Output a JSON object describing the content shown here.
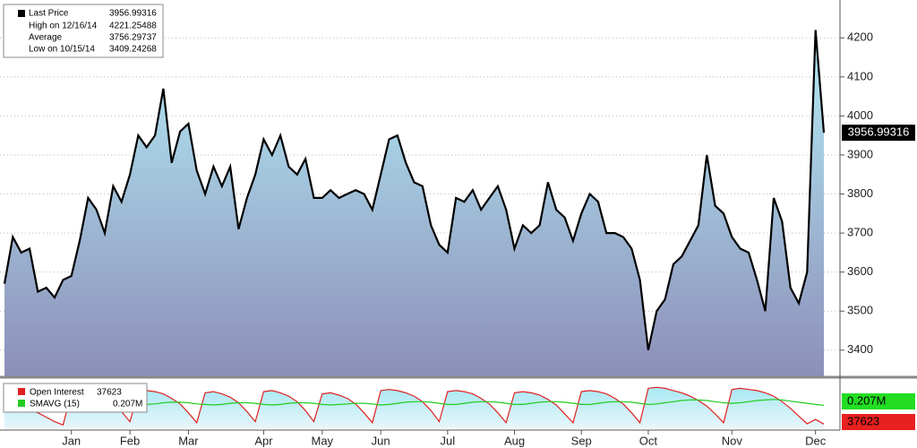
{
  "chart_data": [
    {
      "type": "area",
      "stats": [
        {
          "label": "Last Price",
          "value": 3956.99316
        },
        {
          "label": "High on 12/16/14",
          "value": 4221.25488
        },
        {
          "label": "Average",
          "value": 3756.29737
        },
        {
          "label": "Low on 10/15/14",
          "value": 3409.24268
        }
      ],
      "categories": [
        null,
        null,
        null,
        null,
        null,
        null,
        null,
        null,
        "Jan",
        null,
        null,
        null,
        null,
        null,
        null,
        "Feb",
        null,
        null,
        null,
        null,
        null,
        null,
        "Mar",
        null,
        null,
        null,
        null,
        null,
        null,
        null,
        null,
        "Apr",
        null,
        null,
        null,
        null,
        null,
        null,
        "May",
        null,
        null,
        null,
        null,
        null,
        null,
        "Jun",
        null,
        null,
        null,
        null,
        null,
        null,
        null,
        "Jul",
        null,
        null,
        null,
        null,
        null,
        null,
        null,
        "Aug",
        null,
        null,
        null,
        null,
        null,
        null,
        null,
        "Sep",
        null,
        null,
        null,
        null,
        null,
        null,
        null,
        "Oct",
        null,
        null,
        null,
        null,
        null,
        null,
        null,
        null,
        null,
        "Nov",
        null,
        null,
        null,
        null,
        null,
        null,
        null,
        null,
        null,
        "Dec",
        null
      ],
      "values": [
        3570,
        3690,
        3650,
        3660,
        3550,
        3560,
        3535,
        3580,
        3590,
        3680,
        3790,
        3760,
        3700,
        3820,
        3780,
        3850,
        3950,
        3920,
        3950,
        4070,
        3880,
        3960,
        3980,
        3860,
        3800,
        3870,
        3820,
        3870,
        3710,
        3790,
        3850,
        3940,
        3900,
        3950,
        3870,
        3850,
        3890,
        3790,
        3790,
        3810,
        3790,
        3800,
        3810,
        3800,
        3760,
        3850,
        3940,
        3950,
        3880,
        3830,
        3820,
        3720,
        3670,
        3650,
        3790,
        3780,
        3810,
        3760,
        3790,
        3820,
        3760,
        3660,
        3720,
        3700,
        3720,
        3830,
        3760,
        3740,
        3680,
        3750,
        3800,
        3780,
        3700,
        3700,
        3690,
        3660,
        3580,
        3400,
        3500,
        3530,
        3620,
        3640,
        3680,
        3720,
        3900,
        3770,
        3750,
        3690,
        3660,
        3650,
        3580,
        3500,
        3790,
        3730,
        3560,
        3520,
        3600,
        4220,
        3957
      ],
      "color": "#000000",
      "ylim": [
        3333,
        4297
      ],
      "yticks": [
        3400,
        3500,
        3600,
        3700,
        3800,
        3900,
        4000,
        4100,
        4200
      ],
      "grid": true
    },
    {
      "type": "area",
      "ylim": [
        0,
        420000
      ],
      "series": [
        {
          "name": "Open Interest",
          "color": "#e02020",
          "values": [
            250000,
            230000,
            200000,
            170000,
            140000,
            100000,
            60000,
            30000,
            320000,
            330000,
            320000,
            300000,
            270000,
            230000,
            150000,
            60000,
            330000,
            340000,
            330000,
            310000,
            270000,
            220000,
            140000,
            50000,
            320000,
            330000,
            310000,
            280000,
            230000,
            150000,
            60000,
            330000,
            340000,
            320000,
            290000,
            240000,
            160000,
            60000,
            310000,
            320000,
            300000,
            270000,
            220000,
            140000,
            50000,
            340000,
            350000,
            340000,
            320000,
            290000,
            240000,
            160000,
            60000,
            330000,
            340000,
            330000,
            310000,
            270000,
            220000,
            140000,
            50000,
            320000,
            330000,
            320000,
            300000,
            260000,
            210000,
            130000,
            50000,
            330000,
            340000,
            330000,
            310000,
            270000,
            220000,
            140000,
            50000,
            360000,
            370000,
            360000,
            340000,
            320000,
            290000,
            250000,
            200000,
            130000,
            50000,
            350000,
            360000,
            350000,
            340000,
            320000,
            290000,
            240000,
            180000,
            110000,
            40000,
            80000,
            37623
          ]
        },
        {
          "name": "SMAVG (15)",
          "color": "#22cc22",
          "last_label": "0.207M",
          "values": [
            150000,
            160000,
            170000,
            180000,
            190000,
            200000,
            205000,
            210000,
            215000,
            220000,
            225000,
            230000,
            230000,
            225000,
            220000,
            215000,
            210000,
            215000,
            220000,
            230000,
            235000,
            235000,
            230000,
            220000,
            215000,
            210000,
            215000,
            225000,
            230000,
            230000,
            225000,
            215000,
            210000,
            215000,
            225000,
            230000,
            230000,
            225000,
            215000,
            210000,
            215000,
            220000,
            225000,
            225000,
            220000,
            210000,
            215000,
            225000,
            235000,
            240000,
            240000,
            235000,
            225000,
            215000,
            215000,
            225000,
            235000,
            240000,
            240000,
            235000,
            225000,
            215000,
            215000,
            225000,
            235000,
            240000,
            240000,
            235000,
            225000,
            215000,
            215000,
            225000,
            235000,
            240000,
            240000,
            235000,
            225000,
            215000,
            220000,
            230000,
            240000,
            250000,
            255000,
            255000,
            250000,
            240000,
            230000,
            225000,
            230000,
            240000,
            250000,
            255000,
            260000,
            255000,
            245000,
            235000,
            225000,
            215000,
            207000
          ]
        }
      ]
    }
  ]
}
